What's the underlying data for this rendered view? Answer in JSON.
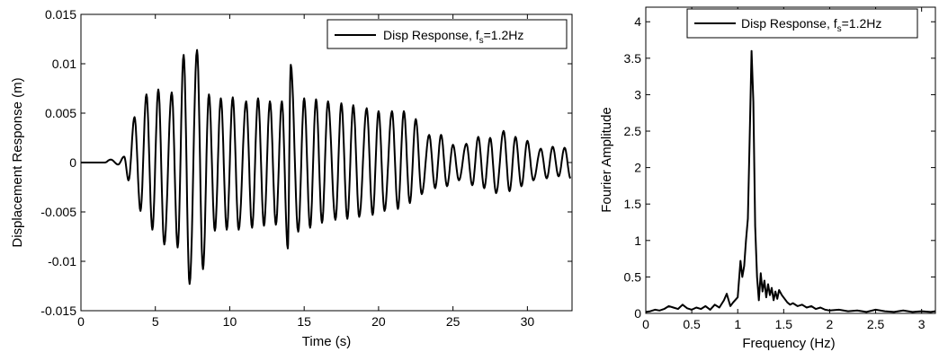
{
  "chart_data": [
    {
      "type": "line",
      "xlabel": "Time (s)",
      "ylabel": "Displacement Response (m)",
      "xlim": [
        0,
        33
      ],
      "ylim": [
        -0.015,
        0.015
      ],
      "xticks": [
        0,
        5,
        10,
        15,
        20,
        25,
        30
      ],
      "xtick_labels": [
        "0",
        "5",
        "10",
        "15",
        "20",
        "25",
        "30"
      ],
      "yticks": [
        -0.015,
        -0.01,
        -0.005,
        0,
        0.005,
        0.01,
        0.015
      ],
      "ytick_labels": [
        "-0.015",
        "-0.01",
        "-0.005",
        "0",
        "0.005",
        "0.01",
        "0.015"
      ],
      "grid": false,
      "legend": {
        "placement": "top-right",
        "text_main": "Disp Response, f",
        "text_sub": "s",
        "text_tail": "=1.2Hz"
      },
      "series": [
        {
          "name": "Disp Response, fs=1.2Hz",
          "color": "#000000",
          "frequency_hz": 1.2,
          "peaks": [
            {
              "t": 2.0,
              "v": 0.0003
            },
            {
              "t": 2.9,
              "v": 0.0006
            },
            {
              "t": 3.6,
              "v": 0.0046
            },
            {
              "t": 4.4,
              "v": 0.0069
            },
            {
              "t": 5.2,
              "v": 0.0074
            },
            {
              "t": 6.1,
              "v": 0.0071
            },
            {
              "t": 6.9,
              "v": 0.0109
            },
            {
              "t": 7.8,
              "v": 0.0114
            },
            {
              "t": 8.6,
              "v": 0.0069
            },
            {
              "t": 9.4,
              "v": 0.0065
            },
            {
              "t": 10.2,
              "v": 0.0066
            },
            {
              "t": 11.1,
              "v": 0.0062
            },
            {
              "t": 11.9,
              "v": 0.0065
            },
            {
              "t": 12.7,
              "v": 0.0062
            },
            {
              "t": 13.5,
              "v": 0.0062
            },
            {
              "t": 14.1,
              "v": 0.0099
            },
            {
              "t": 15.0,
              "v": 0.0065
            },
            {
              "t": 15.8,
              "v": 0.0064
            },
            {
              "t": 16.6,
              "v": 0.0062
            },
            {
              "t": 17.5,
              "v": 0.006
            },
            {
              "t": 18.3,
              "v": 0.0058
            },
            {
              "t": 19.2,
              "v": 0.0055
            },
            {
              "t": 20.0,
              "v": 0.0052
            },
            {
              "t": 20.9,
              "v": 0.0052
            },
            {
              "t": 21.7,
              "v": 0.0052
            },
            {
              "t": 22.5,
              "v": 0.0044
            },
            {
              "t": 23.4,
              "v": 0.0028
            },
            {
              "t": 24.2,
              "v": 0.0028
            },
            {
              "t": 25.0,
              "v": 0.0018
            },
            {
              "t": 25.9,
              "v": 0.0019
            },
            {
              "t": 26.7,
              "v": 0.0026
            },
            {
              "t": 27.5,
              "v": 0.0025
            },
            {
              "t": 28.4,
              "v": 0.0032
            },
            {
              "t": 29.2,
              "v": 0.0026
            },
            {
              "t": 30.0,
              "v": 0.0022
            },
            {
              "t": 30.9,
              "v": 0.0014
            },
            {
              "t": 31.7,
              "v": 0.0016
            },
            {
              "t": 32.5,
              "v": 0.0015
            }
          ],
          "troughs": [
            {
              "t": 2.5,
              "v": -0.0002
            },
            {
              "t": 3.2,
              "v": -0.0018
            },
            {
              "t": 4.0,
              "v": -0.0049
            },
            {
              "t": 4.8,
              "v": -0.0068
            },
            {
              "t": 5.6,
              "v": -0.0083
            },
            {
              "t": 6.5,
              "v": -0.0086
            },
            {
              "t": 7.3,
              "v": -0.0123
            },
            {
              "t": 8.2,
              "v": -0.0108
            },
            {
              "t": 9.0,
              "v": -0.0069
            },
            {
              "t": 9.8,
              "v": -0.0068
            },
            {
              "t": 10.6,
              "v": -0.0068
            },
            {
              "t": 11.5,
              "v": -0.0066
            },
            {
              "t": 12.3,
              "v": -0.0064
            },
            {
              "t": 13.1,
              "v": -0.0063
            },
            {
              "t": 13.9,
              "v": -0.0087
            },
            {
              "t": 14.6,
              "v": -0.007
            },
            {
              "t": 15.4,
              "v": -0.0066
            },
            {
              "t": 16.2,
              "v": -0.0061
            },
            {
              "t": 17.1,
              "v": -0.0058
            },
            {
              "t": 17.9,
              "v": -0.0057
            },
            {
              "t": 18.7,
              "v": -0.0055
            },
            {
              "t": 19.6,
              "v": -0.0053
            },
            {
              "t": 20.4,
              "v": -0.0049
            },
            {
              "t": 21.3,
              "v": -0.0047
            },
            {
              "t": 22.1,
              "v": -0.0041
            },
            {
              "t": 22.9,
              "v": -0.0032
            },
            {
              "t": 23.8,
              "v": -0.0026
            },
            {
              "t": 24.6,
              "v": -0.0024
            },
            {
              "t": 25.4,
              "v": -0.0018
            },
            {
              "t": 26.3,
              "v": -0.0023
            },
            {
              "t": 27.1,
              "v": -0.0026
            },
            {
              "t": 27.9,
              "v": -0.0031
            },
            {
              "t": 28.8,
              "v": -0.0029
            },
            {
              "t": 29.6,
              "v": -0.0024
            },
            {
              "t": 30.4,
              "v": -0.0018
            },
            {
              "t": 31.3,
              "v": -0.0016
            },
            {
              "t": 32.1,
              "v": -0.0014
            },
            {
              "t": 32.9,
              "v": -0.0016
            }
          ]
        }
      ]
    },
    {
      "type": "line",
      "xlabel": "Frequency (Hz)",
      "ylabel": "Fourier Amplitude",
      "xlim": [
        0,
        3.15
      ],
      "ylim": [
        0,
        4.2
      ],
      "xticks": [
        0,
        0.5,
        1,
        1.5,
        2,
        2.5,
        3
      ],
      "xtick_labels": [
        "0",
        "0.5",
        "1",
        "1.5",
        "2",
        "2.5",
        "3"
      ],
      "yticks": [
        0,
        0.5,
        1,
        1.5,
        2,
        2.5,
        3,
        3.5,
        4
      ],
      "ytick_labels": [
        "0",
        "0.5",
        "1",
        "1.5",
        "2",
        "2.5",
        "3",
        "3.5",
        "4"
      ],
      "grid": false,
      "legend": {
        "placement": "top-right",
        "text_main": "Disp Response, f",
        "text_sub": "s",
        "text_tail": "=1.2Hz"
      },
      "series": [
        {
          "name": "Disp Response, fs=1.2Hz",
          "color": "#000000",
          "x": [
            0,
            0.05,
            0.1,
            0.15,
            0.2,
            0.25,
            0.3,
            0.35,
            0.4,
            0.45,
            0.5,
            0.55,
            0.6,
            0.65,
            0.7,
            0.75,
            0.8,
            0.85,
            0.88,
            0.92,
            0.95,
            1.0,
            1.03,
            1.05,
            1.07,
            1.09,
            1.11,
            1.13,
            1.15,
            1.17,
            1.19,
            1.21,
            1.23,
            1.25,
            1.27,
            1.29,
            1.31,
            1.33,
            1.35,
            1.37,
            1.39,
            1.41,
            1.43,
            1.45,
            1.48,
            1.51,
            1.54,
            1.57,
            1.6,
            1.65,
            1.7,
            1.75,
            1.8,
            1.85,
            1.9,
            1.95,
            2.0,
            2.1,
            2.2,
            2.3,
            2.4,
            2.5,
            2.6,
            2.7,
            2.8,
            2.9,
            3.0,
            3.1,
            3.15
          ],
          "y": [
            0.02,
            0.03,
            0.05,
            0.04,
            0.06,
            0.1,
            0.08,
            0.06,
            0.12,
            0.07,
            0.05,
            0.08,
            0.06,
            0.1,
            0.05,
            0.12,
            0.08,
            0.18,
            0.27,
            0.1,
            0.15,
            0.22,
            0.72,
            0.5,
            0.65,
            1.0,
            1.3,
            2.4,
            3.6,
            2.9,
            1.2,
            0.5,
            0.18,
            0.55,
            0.3,
            0.45,
            0.22,
            0.4,
            0.25,
            0.35,
            0.18,
            0.3,
            0.2,
            0.32,
            0.25,
            0.2,
            0.15,
            0.12,
            0.14,
            0.1,
            0.12,
            0.08,
            0.1,
            0.06,
            0.08,
            0.05,
            0.04,
            0.05,
            0.03,
            0.04,
            0.02,
            0.05,
            0.03,
            0.02,
            0.04,
            0.02,
            0.03,
            0.02,
            0.03
          ]
        }
      ]
    }
  ]
}
